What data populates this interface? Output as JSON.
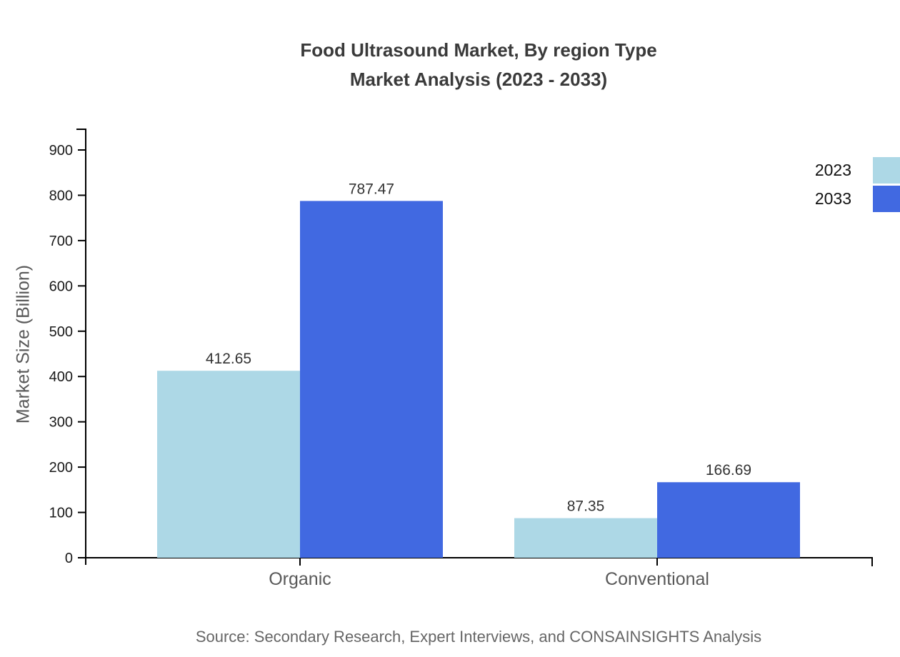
{
  "title": {
    "line1": "Food Ultrasound Market, By region Type",
    "line2": "Market Analysis (2023 - 2033)"
  },
  "source": "Source: Secondary Research, Expert Interviews, and CONSAINSIGHTS Analysis",
  "legend": {
    "items": [
      {
        "label": "2023",
        "color": "#ADD8E6"
      },
      {
        "label": "2033",
        "color": "#4169E1"
      }
    ]
  },
  "chart_data": {
    "type": "bar",
    "title": "Food Ultrasound Market, By region Type Market Analysis (2023 - 2033)",
    "categories": [
      "Organic",
      "Conventional"
    ],
    "series": [
      {
        "name": "2023",
        "color": "#ADD8E6",
        "values": [
          412.65,
          87.35
        ]
      },
      {
        "name": "2033",
        "color": "#4169E1",
        "values": [
          787.47,
          166.69
        ]
      }
    ],
    "xlabel": "",
    "ylabel": "Market Size (Billion)",
    "ylim": [
      0,
      950
    ],
    "yticks": [
      0,
      100,
      200,
      300,
      400,
      500,
      600,
      700,
      800,
      900
    ],
    "grid": false,
    "legend_position": "top-right",
    "value_label_decimals": 2
  },
  "colors": {
    "axis": "#000000",
    "tick_label": "#1a1a1a",
    "category_label": "#595959",
    "value_label": "#333333",
    "title_text": "#3a3a3a",
    "source_text": "#666666"
  }
}
